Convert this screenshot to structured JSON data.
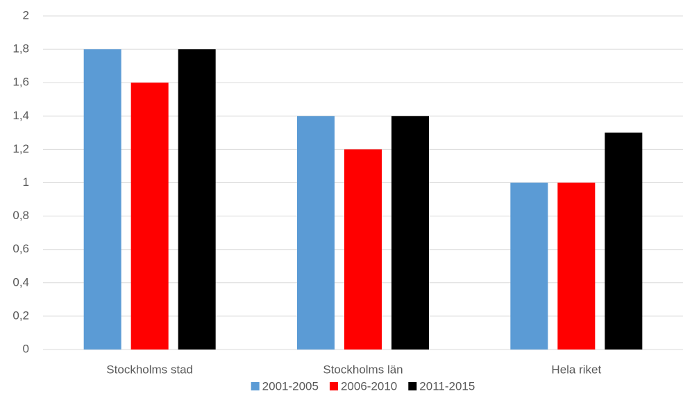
{
  "chart_data": {
    "type": "bar",
    "categories": [
      "Stockholms stad",
      "Stockholms län",
      "Hela riket"
    ],
    "series": [
      {
        "name": "2001-2005",
        "color": "#5b9bd5",
        "values": [
          1.8,
          1.4,
          1.0
        ]
      },
      {
        "name": "2006-2010",
        "color": "#ff0000",
        "values": [
          1.6,
          1.2,
          1.0
        ]
      },
      {
        "name": "2011-2015",
        "color": "#000000",
        "values": [
          1.8,
          1.4,
          1.3
        ]
      }
    ],
    "ylim": [
      0,
      2
    ],
    "yticks": [
      0,
      {
        "value": 0.2,
        "label": "0,2"
      },
      {
        "value": 0.4,
        "label": "0,4"
      },
      {
        "value": 0.6,
        "label": "0,6"
      },
      {
        "value": 0.8,
        "label": "0,8"
      },
      1,
      {
        "value": 1.2,
        "label": "1,2"
      },
      {
        "value": 1.4,
        "label": "1,4"
      },
      {
        "value": 1.6,
        "label": "1,6"
      },
      {
        "value": 1.8,
        "label": "1,8"
      },
      2
    ],
    "grid": true,
    "legend": "bottom"
  }
}
